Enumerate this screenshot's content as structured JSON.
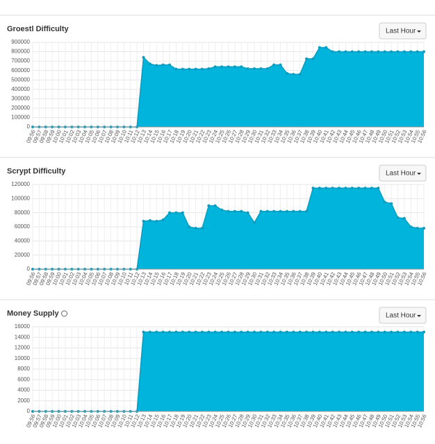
{
  "chart_data": [
    {
      "type": "area",
      "title": "Groestl Difficulty",
      "button": "Last Hour",
      "color": "#00b4dc",
      "grid": true,
      "categories": [
        "09:56",
        "09:57",
        "09:58",
        "09:59",
        "10:00",
        "10:01",
        "10:02",
        "10:03",
        "10:04",
        "10:05",
        "10:06",
        "10:07",
        "10:08",
        "10:09",
        "10:10",
        "10:11",
        "10:12",
        "10:13",
        "10:14",
        "10:15",
        "10:16",
        "10:17",
        "10:18",
        "10:19",
        "10:20",
        "10:21",
        "10:22",
        "10:23",
        "10:24",
        "10:25",
        "10:26",
        "10:27",
        "10:28",
        "10:29",
        "10:30",
        "10:31",
        "10:32",
        "10:33",
        "10:34",
        "10:35",
        "10:36",
        "10:37",
        "10:38",
        "10:39",
        "10:40",
        "10:41",
        "10:42",
        "10:43",
        "10:44",
        "10:45",
        "10:46",
        "10:47",
        "10:48",
        "10:49",
        "10:50",
        "10:51",
        "10:52",
        "10:53",
        "10:54",
        "10:55",
        "10:56"
      ],
      "values": [
        0,
        0,
        0,
        0,
        0,
        0,
        0,
        0,
        0,
        0,
        0,
        0,
        0,
        0,
        0,
        0,
        0,
        740000,
        670000,
        655000,
        660000,
        660000,
        615000,
        615000,
        615000,
        615000,
        615000,
        620000,
        640000,
        640000,
        640000,
        640000,
        640000,
        620000,
        620000,
        620000,
        620000,
        660000,
        660000,
        570000,
        560000,
        560000,
        725000,
        725000,
        845000,
        845000,
        800000,
        800000,
        800000,
        800000,
        800000,
        800000,
        800000,
        800000,
        800000,
        800000,
        800000,
        800000,
        800000,
        800000,
        800000
      ],
      "ylim": [
        0,
        900000
      ],
      "yticks": [
        0,
        100000,
        200000,
        300000,
        400000,
        500000,
        600000,
        700000,
        800000,
        900000
      ]
    },
    {
      "type": "area",
      "title": "Scrypt Difficulty",
      "button": "Last Hour",
      "color": "#00b4dc",
      "grid": true,
      "categories": [
        "09:56",
        "09:57",
        "09:58",
        "09:59",
        "10:00",
        "10:01",
        "10:02",
        "10:03",
        "10:04",
        "10:05",
        "10:06",
        "10:07",
        "10:08",
        "10:09",
        "10:10",
        "10:11",
        "10:12",
        "10:13",
        "10:14",
        "10:15",
        "10:16",
        "10:17",
        "10:18",
        "10:19",
        "10:20",
        "10:21",
        "10:22",
        "10:23",
        "10:24",
        "10:25",
        "10:26",
        "10:27",
        "10:28",
        "10:29",
        "10:30",
        "10:31",
        "10:32",
        "10:33",
        "10:34",
        "10:35",
        "10:36",
        "10:37",
        "10:38",
        "10:39",
        "10:40",
        "10:41",
        "10:42",
        "10:43",
        "10:44",
        "10:45",
        "10:46",
        "10:47",
        "10:48",
        "10:49",
        "10:50",
        "10:51",
        "10:52",
        "10:53",
        "10:54",
        "10:55",
        "10:56"
      ],
      "values": [
        0,
        0,
        0,
        0,
        0,
        0,
        0,
        0,
        0,
        0,
        0,
        0,
        0,
        0,
        0,
        0,
        0,
        68000,
        69000,
        68000,
        70000,
        80000,
        80000,
        80000,
        60000,
        58000,
        58000,
        90000,
        90000,
        84000,
        82000,
        82000,
        82000,
        80000,
        66000,
        82000,
        82000,
        82000,
        82000,
        82000,
        82000,
        82000,
        82000,
        115000,
        115000,
        115000,
        115000,
        115000,
        115000,
        115000,
        115000,
        115000,
        115000,
        115000,
        95000,
        93000,
        73000,
        72000,
        60000,
        58000,
        58000
      ],
      "ylim": [
        0,
        120000
      ],
      "yticks": [
        0,
        20000,
        40000,
        60000,
        80000,
        100000,
        120000
      ]
    },
    {
      "type": "area",
      "title": "Money Supply",
      "button": "Last Hour",
      "color": "#00b4dc",
      "grid": true,
      "categories": [
        "09:56",
        "09:57",
        "09:58",
        "09:59",
        "10:00",
        "10:01",
        "10:02",
        "10:03",
        "10:04",
        "10:05",
        "10:06",
        "10:07",
        "10:08",
        "10:09",
        "10:10",
        "10:11",
        "10:12",
        "10:13",
        "10:14",
        "10:15",
        "10:16",
        "10:17",
        "10:18",
        "10:19",
        "10:20",
        "10:21",
        "10:22",
        "10:23",
        "10:24",
        "10:25",
        "10:26",
        "10:27",
        "10:28",
        "10:29",
        "10:30",
        "10:31",
        "10:32",
        "10:33",
        "10:34",
        "10:35",
        "10:36",
        "10:37",
        "10:38",
        "10:39",
        "10:40",
        "10:41",
        "10:42",
        "10:43",
        "10:44",
        "10:45",
        "10:46",
        "10:47",
        "10:48",
        "10:49",
        "10:50",
        "10:51",
        "10:52",
        "10:53",
        "10:54",
        "10:55",
        "10:56"
      ],
      "values": [
        0,
        0,
        0,
        0,
        0,
        0,
        0,
        0,
        0,
        0,
        0,
        0,
        0,
        0,
        0,
        0,
        0,
        15000,
        15000,
        15000,
        15000,
        15000,
        15000,
        15000,
        15000,
        15000,
        15000,
        15000,
        15000,
        15000,
        15000,
        15000,
        15000,
        15000,
        15000,
        15000,
        15000,
        15000,
        15000,
        15000,
        15000,
        15000,
        15000,
        15000,
        15000,
        15000,
        15000,
        15000,
        15000,
        15000,
        15000,
        15000,
        15000,
        15000,
        15000,
        15000,
        15000,
        15000,
        15000,
        15000,
        15000
      ],
      "ylim": [
        0,
        16000
      ],
      "yticks": [
        0,
        2000,
        4000,
        6000,
        8000,
        10000,
        12000,
        14000,
        16000
      ]
    }
  ]
}
